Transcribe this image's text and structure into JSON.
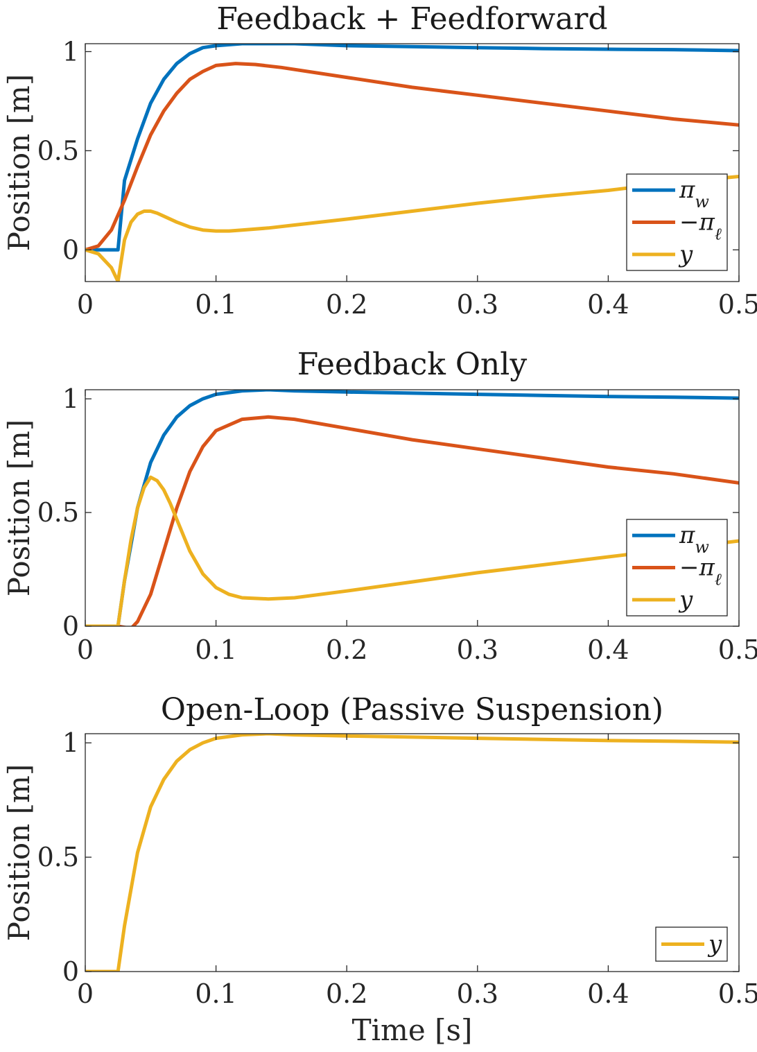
{
  "chart_data": [
    {
      "type": "line",
      "title": "Feedback + Feedforward",
      "ylabel": "Position [m]",
      "xlabel": "",
      "xlim": [
        0,
        0.5
      ],
      "ylim": [
        -0.16,
        1.04
      ],
      "xticks": [
        "0",
        "0.1",
        "0.2",
        "0.3",
        "0.4",
        "0.5"
      ],
      "yticks": [
        "0",
        "0.5",
        "1"
      ],
      "grid": false,
      "legend_position": "bottom-right",
      "series": [
        {
          "name": "π_w",
          "color": "#0072BD",
          "x": [
            0,
            0.02,
            0.025,
            0.03,
            0.04,
            0.05,
            0.06,
            0.07,
            0.08,
            0.09,
            0.1,
            0.12,
            0.14,
            0.16,
            0.2,
            0.25,
            0.3,
            0.35,
            0.4,
            0.45,
            0.5
          ],
          "y": [
            0,
            0,
            0,
            0.35,
            0.56,
            0.74,
            0.86,
            0.94,
            0.99,
            1.02,
            1.03,
            1.04,
            1.04,
            1.04,
            1.03,
            1.025,
            1.02,
            1.015,
            1.012,
            1.01,
            1.005
          ]
        },
        {
          "name": "−π_ℓ",
          "color": "#D95319",
          "x": [
            0,
            0.01,
            0.02,
            0.03,
            0.04,
            0.05,
            0.06,
            0.07,
            0.08,
            0.09,
            0.1,
            0.115,
            0.13,
            0.15,
            0.2,
            0.25,
            0.3,
            0.35,
            0.4,
            0.45,
            0.5
          ],
          "y": [
            0,
            0.02,
            0.1,
            0.25,
            0.42,
            0.58,
            0.7,
            0.79,
            0.86,
            0.9,
            0.93,
            0.94,
            0.935,
            0.92,
            0.87,
            0.82,
            0.78,
            0.74,
            0.7,
            0.66,
            0.63
          ]
        },
        {
          "name": "y",
          "color": "#EDB120",
          "x": [
            0,
            0.01,
            0.02,
            0.025,
            0.03,
            0.035,
            0.04,
            0.045,
            0.05,
            0.055,
            0.06,
            0.07,
            0.08,
            0.09,
            0.1,
            0.11,
            0.12,
            0.14,
            0.16,
            0.2,
            0.25,
            0.3,
            0.35,
            0.4,
            0.45,
            0.5
          ],
          "y": [
            0,
            -0.02,
            -0.09,
            -0.16,
            0.05,
            0.14,
            0.18,
            0.195,
            0.195,
            0.185,
            0.17,
            0.14,
            0.115,
            0.1,
            0.095,
            0.095,
            0.1,
            0.11,
            0.125,
            0.155,
            0.195,
            0.235,
            0.27,
            0.3,
            0.34,
            0.37
          ]
        }
      ]
    },
    {
      "type": "line",
      "title": "Feedback Only",
      "ylabel": "Position [m]",
      "xlabel": "",
      "xlim": [
        0,
        0.5
      ],
      "ylim": [
        0,
        1.04
      ],
      "xticks": [
        "0",
        "0.1",
        "0.2",
        "0.3",
        "0.4",
        "0.5"
      ],
      "yticks": [
        "0",
        "0.5",
        "1"
      ],
      "grid": false,
      "legend_position": "bottom-right",
      "series": [
        {
          "name": "π_w",
          "color": "#0072BD",
          "x": [
            0,
            0.025,
            0.03,
            0.04,
            0.05,
            0.06,
            0.07,
            0.08,
            0.09,
            0.1,
            0.12,
            0.14,
            0.16,
            0.2,
            0.25,
            0.3,
            0.35,
            0.4,
            0.45,
            0.5
          ],
          "y": [
            0,
            0,
            0.2,
            0.52,
            0.72,
            0.84,
            0.92,
            0.97,
            1.0,
            1.02,
            1.035,
            1.04,
            1.035,
            1.03,
            1.025,
            1.02,
            1.015,
            1.01,
            1.007,
            1.003
          ]
        },
        {
          "name": "−π_ℓ",
          "color": "#D95319",
          "x": [
            0,
            0.025,
            0.03,
            0.035,
            0.04,
            0.05,
            0.06,
            0.07,
            0.08,
            0.09,
            0.1,
            0.12,
            0.14,
            0.16,
            0.2,
            0.25,
            0.3,
            0.35,
            0.4,
            0.45,
            0.5
          ],
          "y": [
            0,
            0,
            -0.005,
            -0.01,
            0.02,
            0.14,
            0.33,
            0.52,
            0.68,
            0.79,
            0.86,
            0.91,
            0.92,
            0.91,
            0.87,
            0.82,
            0.78,
            0.74,
            0.7,
            0.67,
            0.63
          ]
        },
        {
          "name": "y",
          "color": "#EDB120",
          "x": [
            0,
            0.025,
            0.03,
            0.035,
            0.04,
            0.045,
            0.05,
            0.055,
            0.06,
            0.065,
            0.07,
            0.08,
            0.09,
            0.1,
            0.11,
            0.12,
            0.14,
            0.16,
            0.2,
            0.25,
            0.3,
            0.35,
            0.4,
            0.45,
            0.5
          ],
          "y": [
            0,
            0,
            0.2,
            0.38,
            0.52,
            0.61,
            0.655,
            0.64,
            0.6,
            0.54,
            0.47,
            0.33,
            0.23,
            0.17,
            0.14,
            0.125,
            0.12,
            0.125,
            0.155,
            0.195,
            0.235,
            0.27,
            0.305,
            0.34,
            0.375
          ]
        }
      ]
    },
    {
      "type": "line",
      "title": "Open-Loop (Passive Suspension)",
      "ylabel": "Position [m]",
      "xlabel": "Time [s]",
      "xlim": [
        0,
        0.5
      ],
      "ylim": [
        0,
        1.04
      ],
      "xticks": [
        "0",
        "0.1",
        "0.2",
        "0.3",
        "0.4",
        "0.5"
      ],
      "yticks": [
        "0",
        "0.5",
        "1"
      ],
      "grid": false,
      "legend_position": "bottom-right",
      "series": [
        {
          "name": "y",
          "color": "#EDB120",
          "x": [
            0,
            0.025,
            0.03,
            0.04,
            0.05,
            0.06,
            0.07,
            0.08,
            0.09,
            0.1,
            0.12,
            0.14,
            0.16,
            0.2,
            0.25,
            0.3,
            0.35,
            0.4,
            0.45,
            0.5
          ],
          "y": [
            0,
            0,
            0.2,
            0.52,
            0.72,
            0.84,
            0.92,
            0.97,
            1.0,
            1.02,
            1.035,
            1.04,
            1.035,
            1.03,
            1.025,
            1.02,
            1.015,
            1.01,
            1.007,
            1.003
          ]
        }
      ]
    }
  ]
}
